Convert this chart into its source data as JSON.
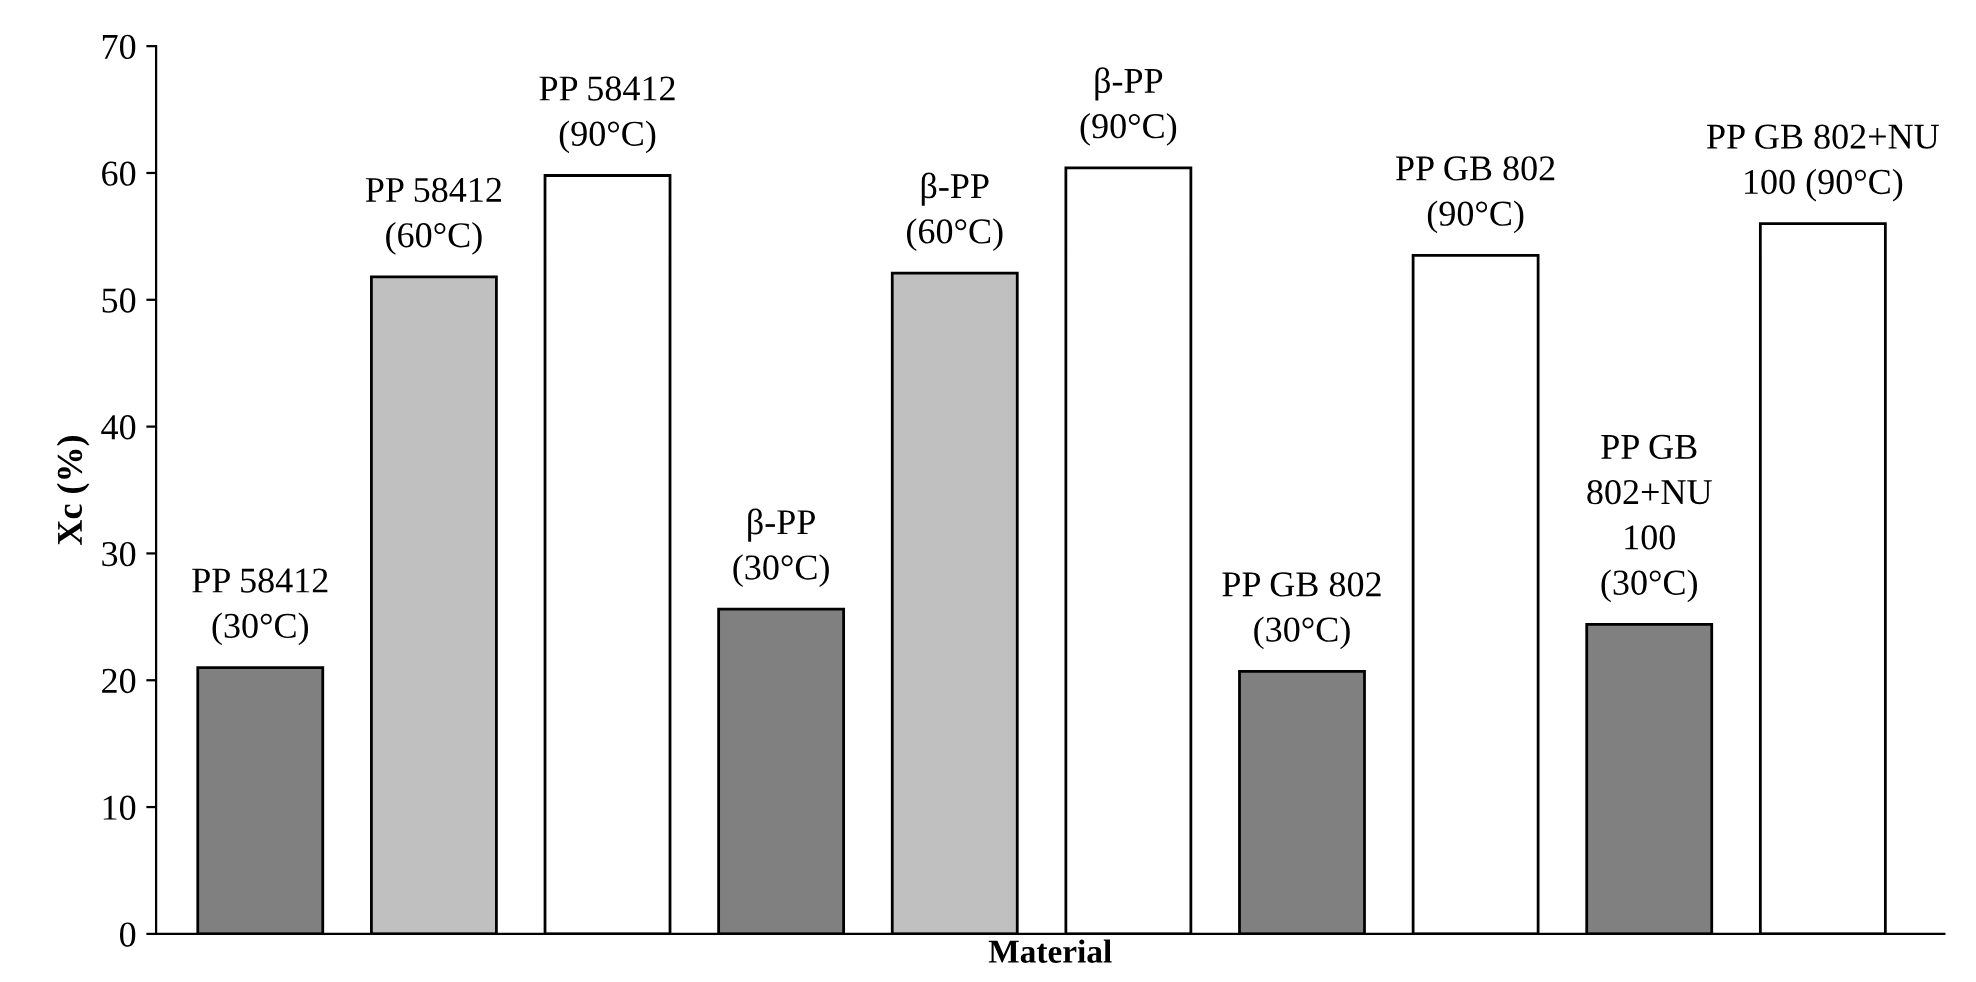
{
  "chart_data": {
    "type": "bar",
    "categories": [
      "PP 58412\n(30°C)",
      "PP 58412\n(60°C)",
      "PP 58412\n(90°C)",
      "β-PP\n(30°C)",
      "β-PP\n(60°C)",
      "β-PP\n(90°C)",
      "PP GB 802\n(30°C)",
      "PP GB 802\n(90°C)",
      "PP GB\n802+NU\n100\n(30°C)",
      "PP GB 802+NU\n100 (90°C)"
    ],
    "values": [
      21.0,
      51.8,
      59.8,
      25.6,
      52.1,
      60.4,
      20.7,
      53.5,
      24.4,
      56.0
    ],
    "colors": [
      "#808080",
      "#c0c0c0",
      "#ffffff",
      "#808080",
      "#c0c0c0",
      "#ffffff",
      "#808080",
      "#ffffff",
      "#808080",
      "#ffffff"
    ],
    "xlabel": "Material",
    "ylabel": "Xc (%)",
    "ylim": [
      0,
      70
    ],
    "yticks": [
      0,
      10,
      20,
      30,
      40,
      50,
      60,
      70
    ],
    "grid": false,
    "legend": false
  }
}
